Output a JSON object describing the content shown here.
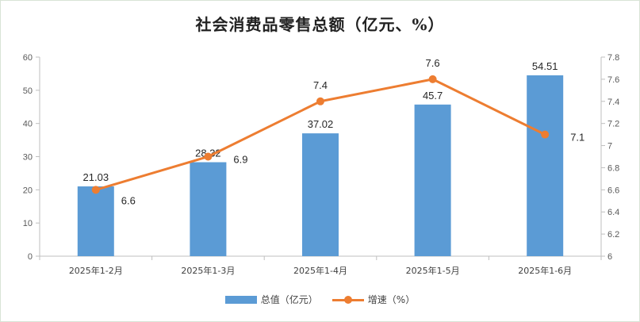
{
  "title": "社会消费品零售总额（亿元、%）",
  "colors": {
    "bar": "#5b9bd5",
    "line": "#ed7d31",
    "axis": "#bfbfbf"
  },
  "legend": {
    "bar_label": "总值（亿元）",
    "line_label": "增速（%）"
  },
  "chart_data": {
    "type": "bar",
    "title": "社会消费品零售总额（亿元、%）",
    "categories": [
      "2025年1-2月",
      "2025年1-3月",
      "2025年1-4月",
      "2025年1-5月",
      "2025年1-6月"
    ],
    "series": [
      {
        "name": "总值（亿元）",
        "type": "bar",
        "axis": "left",
        "values": [
          21.03,
          28.32,
          37.02,
          45.7,
          54.51
        ],
        "labels": [
          "21.03",
          "28.32",
          "37.02",
          "45.7",
          "54.51"
        ]
      },
      {
        "name": "增速（%）",
        "type": "line",
        "axis": "right",
        "values": [
          6.6,
          6.9,
          7.4,
          7.6,
          7.1
        ],
        "labels": [
          "6.6",
          "6.9",
          "7.4",
          "7.6",
          "7.1"
        ]
      }
    ],
    "y_left": {
      "min": 0,
      "max": 60,
      "ticks": [
        "0",
        "10",
        "20",
        "30",
        "40",
        "50",
        "60"
      ]
    },
    "y_right": {
      "min": 6,
      "max": 7.8,
      "ticks": [
        "6",
        "6.2",
        "6.4",
        "6.6",
        "6.8",
        "7",
        "7.2",
        "7.4",
        "7.6",
        "7.8"
      ]
    },
    "grid": false,
    "legend_position": "bottom"
  }
}
